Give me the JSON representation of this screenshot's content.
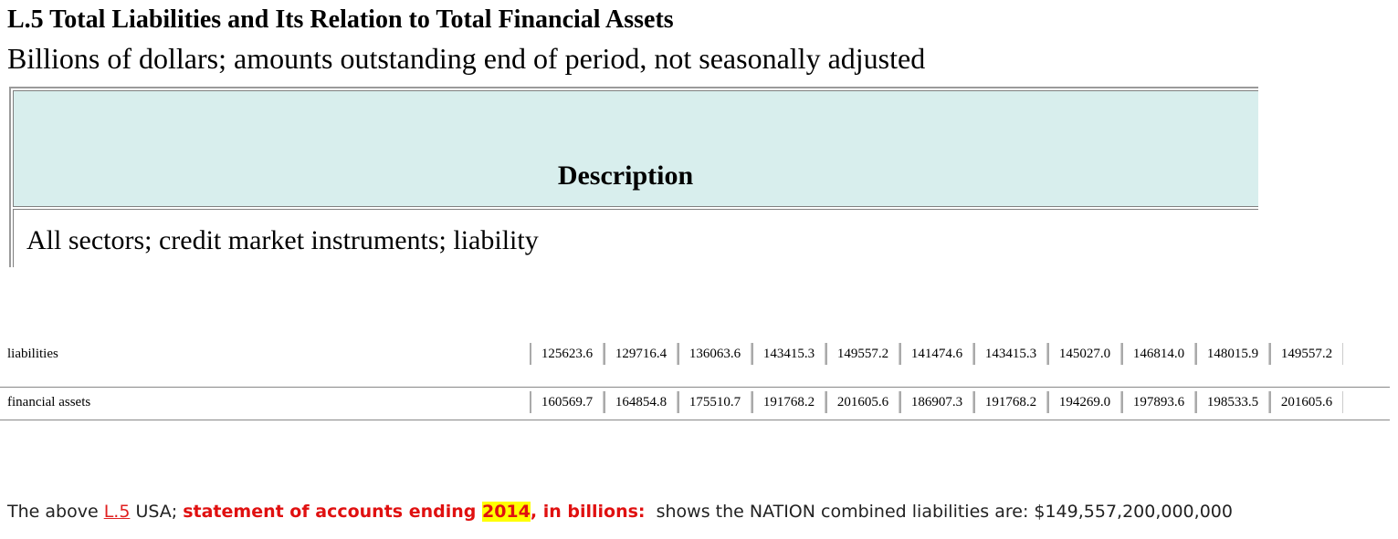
{
  "title": "L.5 Total Liabilities and Its Relation to Total Financial Assets",
  "subtitle": "Billions of dollars; amounts outstanding end of period, not seasonally adjusted",
  "description_table": {
    "header": "Description",
    "row": "All sectors; credit market instruments; liability"
  },
  "rows": [
    {
      "label": "liabilities",
      "values": [
        "125623.6",
        "129716.4",
        "136063.6",
        "143415.3",
        "149557.2",
        "141474.6",
        "143415.3",
        "145027.0",
        "146814.0",
        "148015.9",
        "149557.2"
      ]
    },
    {
      "label": "financial assets",
      "values": [
        "160569.7",
        "164854.8",
        "175510.7",
        "191768.2",
        "201605.6",
        "186907.3",
        "191768.2",
        "194269.0",
        "197893.6",
        "198533.5",
        "201605.6"
      ]
    }
  ],
  "summary": {
    "prefix": "The above",
    "link": "L.5",
    "middle": "USA;",
    "bold_before": "statement of accounts ending",
    "year": "2014",
    "bold_after": ", in billions:",
    "suffix": "shows the NATION combined liabilities are: $149,557,200,000,000"
  },
  "colors": {
    "header_bg": "#d8eeed",
    "accent_red": "#e01010",
    "highlight": "#ffff00"
  }
}
